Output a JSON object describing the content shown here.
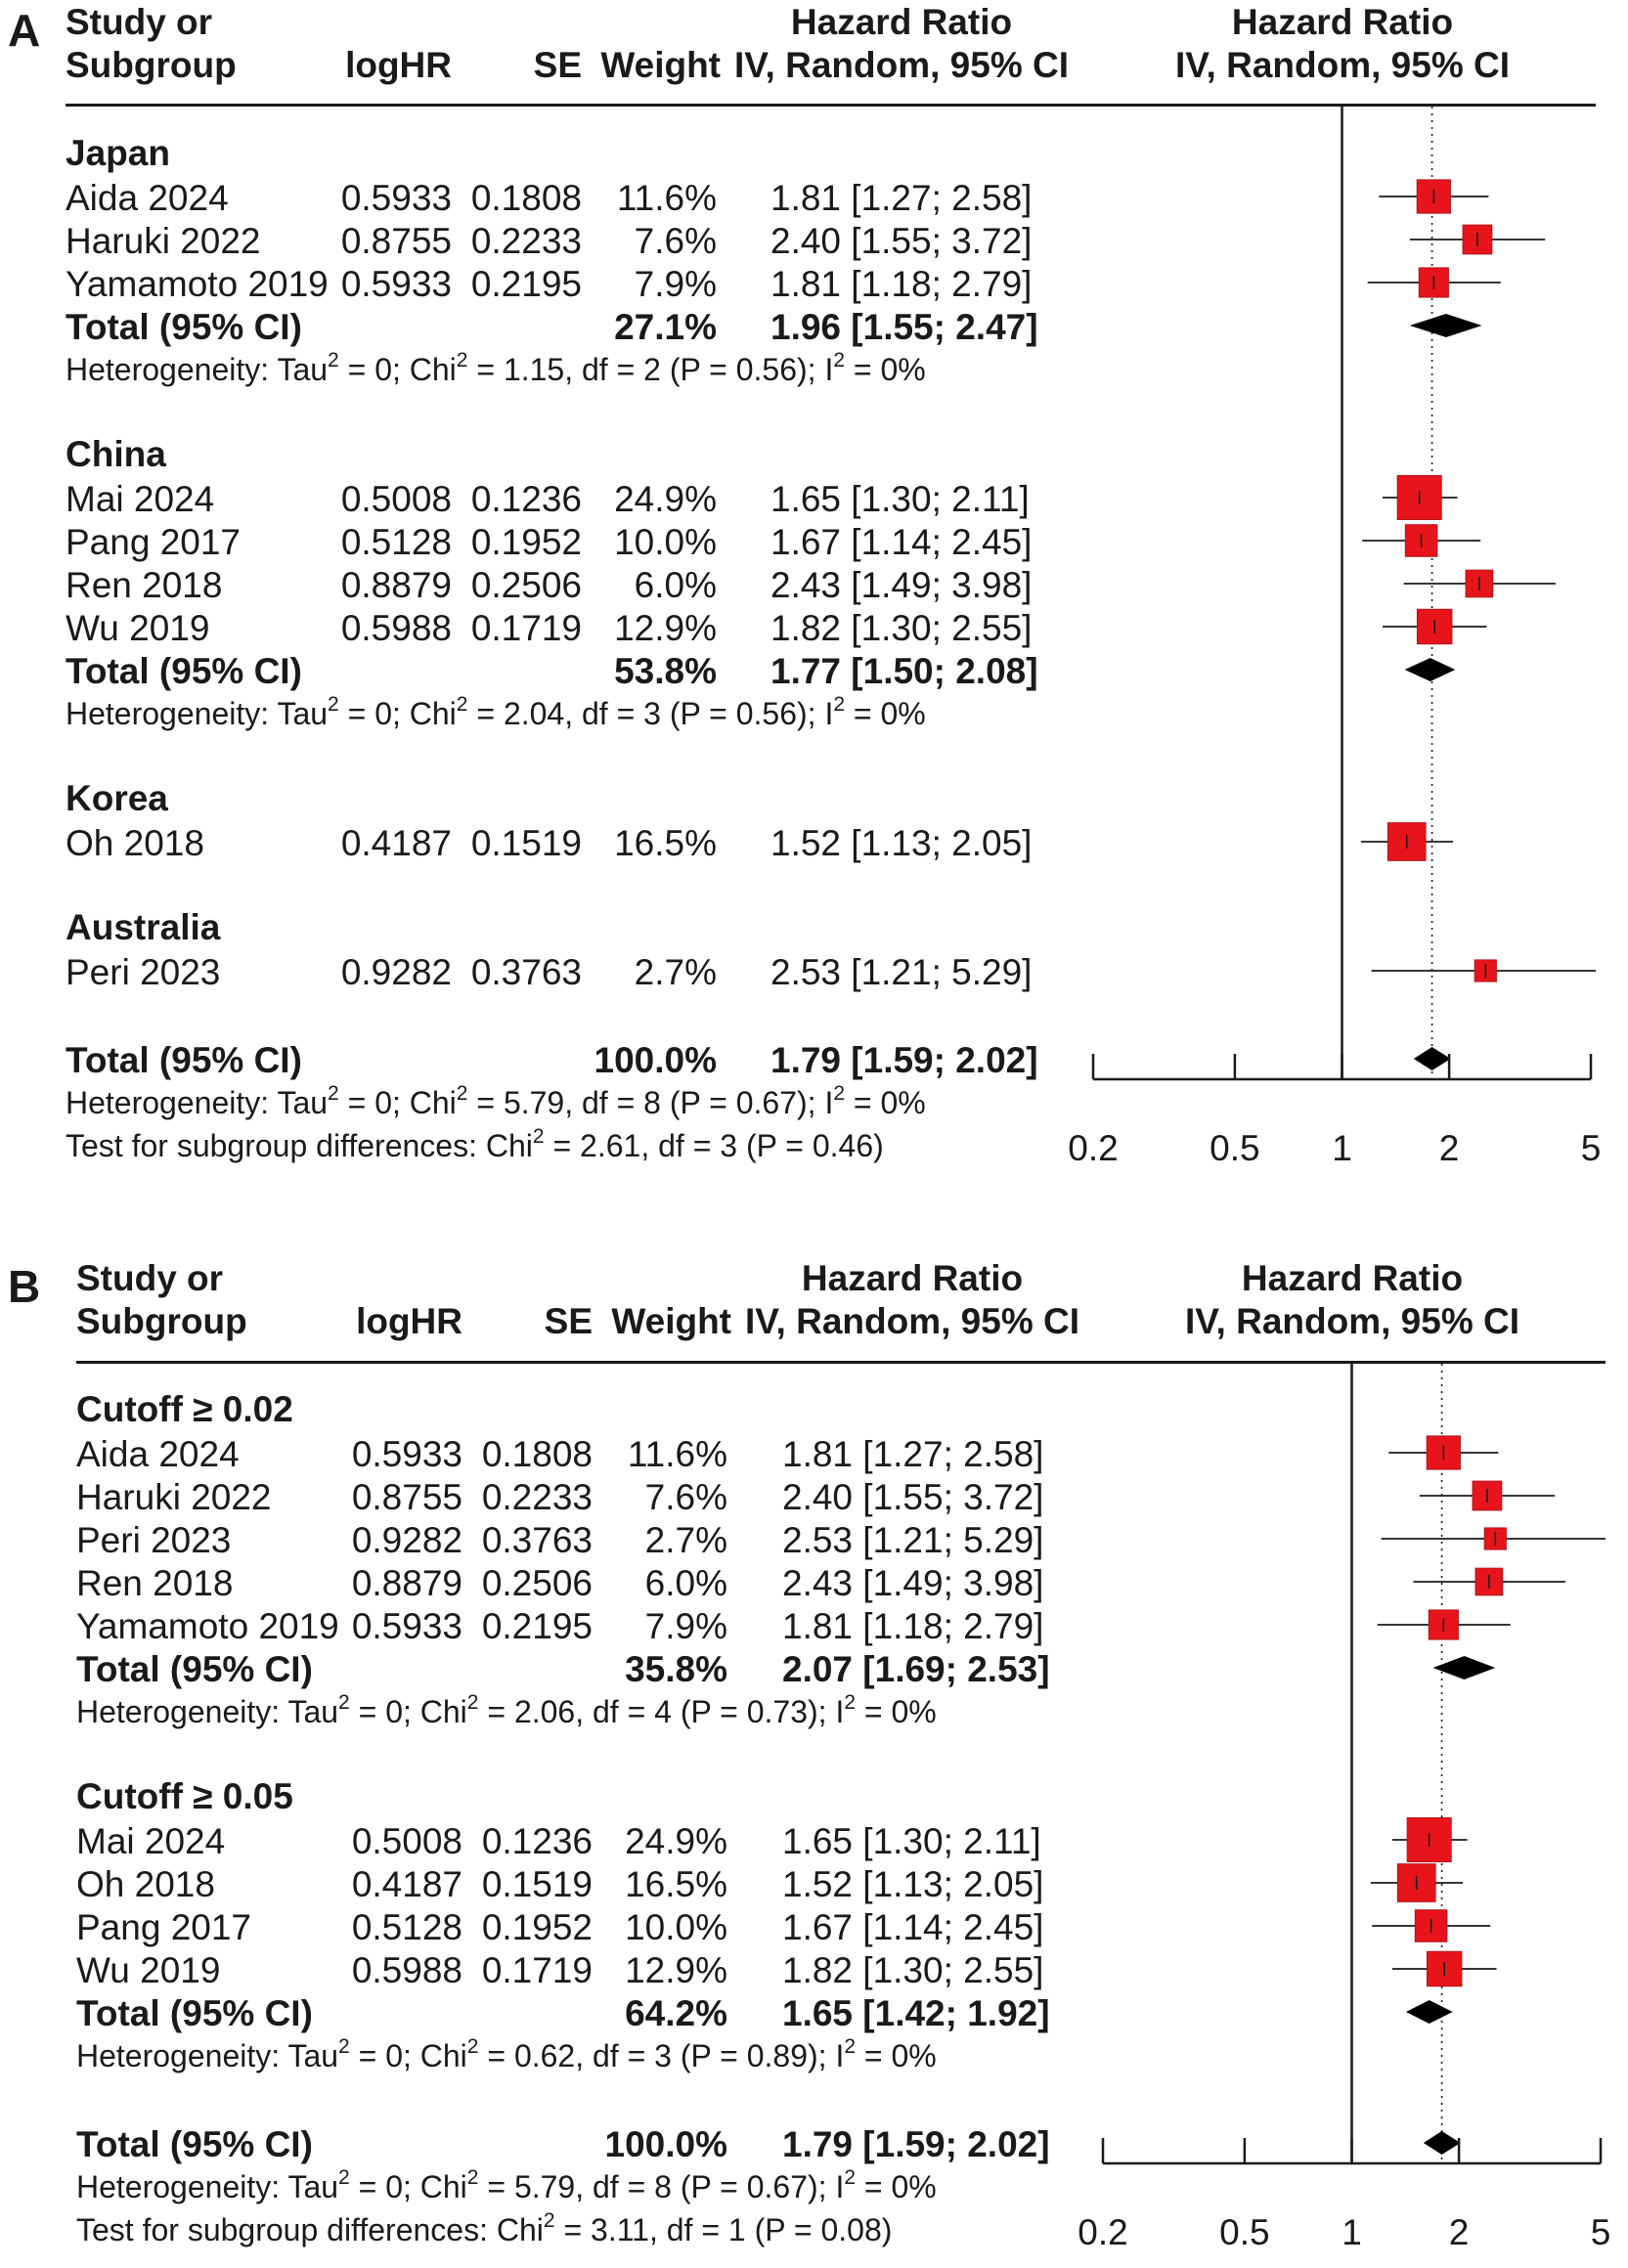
{
  "axis": {
    "min": 0.2,
    "max": 5,
    "ticks": [
      0.2,
      0.5,
      1,
      2,
      5
    ],
    "tick_labels": [
      "0.2",
      "0.5",
      "1",
      "2",
      "5"
    ]
  },
  "colors": {
    "box": "#e8141b",
    "diamond": "#000000",
    "line": "#1a1a1a"
  },
  "headers": {
    "study_line1": "Study or",
    "study_line2": "Subgroup",
    "loghr": "logHR",
    "se": "SE",
    "weight": "Weight",
    "hr_line1": "Hazard Ratio",
    "hr_line2": "IV, Random, 95% CI",
    "plot_line1": "Hazard Ratio",
    "plot_line2": "IV, Random, 95% CI"
  },
  "panels": [
    {
      "label": "A",
      "groups": [
        {
          "name": "Japan",
          "studies": [
            {
              "study": "Aida 2024",
              "loghr": "0.5933",
              "se": "0.1808",
              "weight": "11.6%",
              "weight_value": 11.6,
              "hr_text": "1.81 [1.27; 2.58]",
              "hr": 1.81,
              "lo": 1.27,
              "hi": 2.58
            },
            {
              "study": "Haruki 2022",
              "loghr": "0.8755",
              "se": "0.2233",
              "weight": "7.6%",
              "weight_value": 7.6,
              "hr_text": "2.40 [1.55; 3.72]",
              "hr": 2.4,
              "lo": 1.55,
              "hi": 3.72
            },
            {
              "study": "Yamamoto 2019",
              "loghr": "0.5933",
              "se": "0.2195",
              "weight": "7.9%",
              "weight_value": 7.9,
              "hr_text": "1.81 [1.18; 2.79]",
              "hr": 1.81,
              "lo": 1.18,
              "hi": 2.79
            }
          ],
          "total": {
            "label": "Total (95% CI)",
            "weight": "27.1%",
            "hr_text": "1.96 [1.55; 2.47]",
            "hr": 1.96,
            "lo": 1.55,
            "hi": 2.47
          },
          "het": {
            "pre": "Heterogeneity: Tau",
            "mid": " = 0; Chi",
            "post": " = 1.15, df = 2 (P = 0.56); I",
            "end": " = 0%",
            "sup": "2"
          }
        },
        {
          "name": "China",
          "studies": [
            {
              "study": "Mai 2024",
              "loghr": "0.5008",
              "se": "0.1236",
              "weight": "24.9%",
              "weight_value": 24.9,
              "hr_text": "1.65 [1.30; 2.11]",
              "hr": 1.65,
              "lo": 1.3,
              "hi": 2.11
            },
            {
              "study": "Pang 2017",
              "loghr": "0.5128",
              "se": "0.1952",
              "weight": "10.0%",
              "weight_value": 10.0,
              "hr_text": "1.67 [1.14; 2.45]",
              "hr": 1.67,
              "lo": 1.14,
              "hi": 2.45
            },
            {
              "study": "Ren 2018",
              "loghr": "0.8879",
              "se": "0.2506",
              "weight": "6.0%",
              "weight_value": 6.0,
              "hr_text": "2.43 [1.49; 3.98]",
              "hr": 2.43,
              "lo": 1.49,
              "hi": 3.98
            },
            {
              "study": "Wu 2019",
              "loghr": "0.5988",
              "se": "0.1719",
              "weight": "12.9%",
              "weight_value": 12.9,
              "hr_text": "1.82 [1.30; 2.55]",
              "hr": 1.82,
              "lo": 1.3,
              "hi": 2.55
            }
          ],
          "total": {
            "label": "Total (95% CI)",
            "weight": "53.8%",
            "hr_text": "1.77 [1.50; 2.08]",
            "hr": 1.77,
            "lo": 1.5,
            "hi": 2.08
          },
          "het": {
            "pre": "Heterogeneity: Tau",
            "mid": " = 0; Chi",
            "post": " = 2.04, df = 3 (P = 0.56); I",
            "end": " = 0%",
            "sup": "2"
          }
        },
        {
          "name": "Korea",
          "studies": [
            {
              "study": "Oh 2018",
              "loghr": "0.4187",
              "se": "0.1519",
              "weight": "16.5%",
              "weight_value": 16.5,
              "hr_text": "1.52 [1.13; 2.05]",
              "hr": 1.52,
              "lo": 1.13,
              "hi": 2.05
            }
          ]
        },
        {
          "name": "Australia",
          "studies": [
            {
              "study": "Peri 2023",
              "loghr": "0.9282",
              "se": "0.3763",
              "weight": "2.7%",
              "weight_value": 2.7,
              "hr_text": "2.53 [1.21; 5.29]",
              "hr": 2.53,
              "lo": 1.21,
              "hi": 5.29
            }
          ]
        }
      ],
      "overall": {
        "label": "Total (95% CI)",
        "weight": "100.0%",
        "hr_text": "1.79 [1.59; 2.02]",
        "hr": 1.79,
        "lo": 1.59,
        "hi": 2.02
      },
      "overall_het": {
        "pre": "Heterogeneity: Tau",
        "mid": " = 0; Chi",
        "post": " = 5.79, df = 8 (P = 0.67); I",
        "end": " = 0%",
        "sup": "2"
      },
      "subgroup_test": {
        "pre": "Test for subgroup differences: Chi",
        "post": " = 2.61, df = 3 (P = 0.46)",
        "sup": "2"
      }
    },
    {
      "label": "B",
      "groups": [
        {
          "name": "Cutoff ≥ 0.02",
          "studies": [
            {
              "study": "Aida 2024",
              "loghr": "0.5933",
              "se": "0.1808",
              "weight": "11.6%",
              "weight_value": 11.6,
              "hr_text": "1.81 [1.27; 2.58]",
              "hr": 1.81,
              "lo": 1.27,
              "hi": 2.58
            },
            {
              "study": "Haruki 2022",
              "loghr": "0.8755",
              "se": "0.2233",
              "weight": "7.6%",
              "weight_value": 7.6,
              "hr_text": "2.40 [1.55; 3.72]",
              "hr": 2.4,
              "lo": 1.55,
              "hi": 3.72
            },
            {
              "study": "Peri 2023",
              "loghr": "0.9282",
              "se": "0.3763",
              "weight": "2.7%",
              "weight_value": 2.7,
              "hr_text": "2.53 [1.21; 5.29]",
              "hr": 2.53,
              "lo": 1.21,
              "hi": 5.29
            },
            {
              "study": "Ren 2018",
              "loghr": "0.8879",
              "se": "0.2506",
              "weight": "6.0%",
              "weight_value": 6.0,
              "hr_text": "2.43 [1.49; 3.98]",
              "hr": 2.43,
              "lo": 1.49,
              "hi": 3.98
            },
            {
              "study": "Yamamoto 2019",
              "loghr": "0.5933",
              "se": "0.2195",
              "weight": "7.9%",
              "weight_value": 7.9,
              "hr_text": "1.81 [1.18; 2.79]",
              "hr": 1.81,
              "lo": 1.18,
              "hi": 2.79
            }
          ],
          "total": {
            "label": "Total (95% CI)",
            "weight": "35.8%",
            "hr_text": "2.07 [1.69; 2.53]",
            "hr": 2.07,
            "lo": 1.69,
            "hi": 2.53
          },
          "het": {
            "pre": "Heterogeneity: Tau",
            "mid": " = 0; Chi",
            "post": " = 2.06, df = 4 (P = 0.73); I",
            "end": " = 0%",
            "sup": "2"
          }
        },
        {
          "name": "Cutoff ≥ 0.05",
          "studies": [
            {
              "study": "Mai 2024",
              "loghr": "0.5008",
              "se": "0.1236",
              "weight": "24.9%",
              "weight_value": 24.9,
              "hr_text": "1.65 [1.30; 2.11]",
              "hr": 1.65,
              "lo": 1.3,
              "hi": 2.11
            },
            {
              "study": "Oh 2018",
              "loghr": "0.4187",
              "se": "0.1519",
              "weight": "16.5%",
              "weight_value": 16.5,
              "hr_text": "1.52 [1.13; 2.05]",
              "hr": 1.52,
              "lo": 1.13,
              "hi": 2.05
            },
            {
              "study": "Pang 2017",
              "loghr": "0.5128",
              "se": "0.1952",
              "weight": "10.0%",
              "weight_value": 10.0,
              "hr_text": "1.67 [1.14; 2.45]",
              "hr": 1.67,
              "lo": 1.14,
              "hi": 2.45
            },
            {
              "study": "Wu 2019",
              "loghr": "0.5988",
              "se": "0.1719",
              "weight": "12.9%",
              "weight_value": 12.9,
              "hr_text": "1.82 [1.30; 2.55]",
              "hr": 1.82,
              "lo": 1.3,
              "hi": 2.55
            }
          ],
          "total": {
            "label": "Total (95% CI)",
            "weight": "64.2%",
            "hr_text": "1.65 [1.42; 1.92]",
            "hr": 1.65,
            "lo": 1.42,
            "hi": 1.92
          },
          "het": {
            "pre": "Heterogeneity: Tau",
            "mid": " = 0; Chi",
            "post": " = 0.62, df = 3 (P = 0.89); I",
            "end": " = 0%",
            "sup": "2"
          }
        }
      ],
      "overall": {
        "label": "Total (95% CI)",
        "weight": "100.0%",
        "hr_text": "1.79 [1.59; 2.02]",
        "hr": 1.79,
        "lo": 1.59,
        "hi": 2.02
      },
      "overall_het": {
        "pre": "Heterogeneity: Tau",
        "mid": " = 0; Chi",
        "post": " = 5.79, df = 8 (P = 0.67); I",
        "end": " = 0%",
        "sup": "2"
      },
      "subgroup_test": {
        "pre": "Test for subgroup differences: Chi",
        "post": " = 3.11, df = 1 (P = 0.08)",
        "sup": "2"
      }
    }
  ],
  "chart_data": [
    {
      "type": "forest",
      "title": "A",
      "scale": "log",
      "xlim": [
        0.2,
        5
      ],
      "x_ticks": [
        0.2,
        0.5,
        1,
        2,
        5
      ],
      "null_line": 1,
      "overall_line": 1.79,
      "series": [
        {
          "name": "Japan",
          "studies": [
            "Aida 2024",
            "Haruki 2022",
            "Yamamoto 2019"
          ],
          "hr": [
            1.81,
            2.4,
            1.81
          ],
          "lower": [
            1.27,
            1.55,
            1.18
          ],
          "upper": [
            2.58,
            3.72,
            2.79
          ],
          "weights": [
            11.6,
            7.6,
            7.9
          ],
          "pooled": [
            1.96,
            1.55,
            2.47
          ]
        },
        {
          "name": "China",
          "studies": [
            "Mai 2024",
            "Pang 2017",
            "Ren 2018",
            "Wu 2019"
          ],
          "hr": [
            1.65,
            1.67,
            2.43,
            1.82
          ],
          "lower": [
            1.3,
            1.14,
            1.49,
            1.3
          ],
          "upper": [
            2.11,
            2.45,
            3.98,
            2.55
          ],
          "weights": [
            24.9,
            10.0,
            6.0,
            12.9
          ],
          "pooled": [
            1.77,
            1.5,
            2.08
          ]
        },
        {
          "name": "Korea",
          "studies": [
            "Oh 2018"
          ],
          "hr": [
            1.52
          ],
          "lower": [
            1.13
          ],
          "upper": [
            2.05
          ],
          "weights": [
            16.5
          ]
        },
        {
          "name": "Australia",
          "studies": [
            "Peri 2023"
          ],
          "hr": [
            2.53
          ],
          "lower": [
            1.21
          ],
          "upper": [
            5.29
          ],
          "weights": [
            2.7
          ]
        }
      ],
      "overall": [
        1.79,
        1.59,
        2.02
      ]
    },
    {
      "type": "forest",
      "title": "B",
      "scale": "log",
      "xlim": [
        0.2,
        5
      ],
      "x_ticks": [
        0.2,
        0.5,
        1,
        2,
        5
      ],
      "null_line": 1,
      "overall_line": 1.79,
      "series": [
        {
          "name": "Cutoff ≥ 0.02",
          "studies": [
            "Aida 2024",
            "Haruki 2022",
            "Peri 2023",
            "Ren 2018",
            "Yamamoto 2019"
          ],
          "hr": [
            1.81,
            2.4,
            2.53,
            2.43,
            1.81
          ],
          "lower": [
            1.27,
            1.55,
            1.21,
            1.49,
            1.18
          ],
          "upper": [
            2.58,
            3.72,
            5.29,
            3.98,
            2.79
          ],
          "weights": [
            11.6,
            7.6,
            2.7,
            6.0,
            7.9
          ],
          "pooled": [
            2.07,
            1.69,
            2.53
          ]
        },
        {
          "name": "Cutoff ≥ 0.05",
          "studies": [
            "Mai 2024",
            "Oh 2018",
            "Pang 2017",
            "Wu 2019"
          ],
          "hr": [
            1.65,
            1.52,
            1.67,
            1.82
          ],
          "lower": [
            1.3,
            1.13,
            1.14,
            1.3
          ],
          "upper": [
            2.11,
            2.05,
            2.45,
            2.55
          ],
          "weights": [
            24.9,
            16.5,
            10.0,
            12.9
          ],
          "pooled": [
            1.65,
            1.42,
            1.92
          ]
        }
      ],
      "overall": [
        1.79,
        1.59,
        2.02
      ]
    }
  ]
}
